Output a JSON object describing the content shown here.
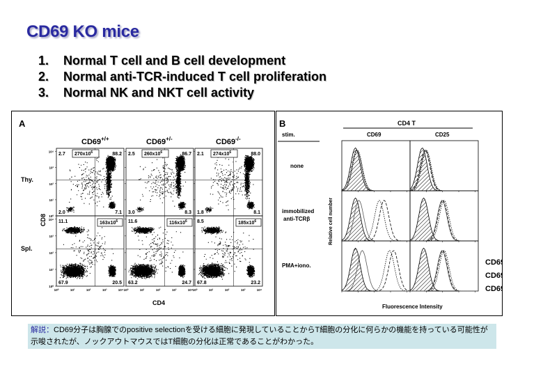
{
  "title": "CD69 KO mice",
  "points": [
    {
      "num": "1.",
      "text": "Normal T cell and B cell development"
    },
    {
      "num": "2.",
      "text": "Normal anti-TCR-induced T cell proliferation"
    },
    {
      "num": "3.",
      "text": "Normal NK and NKT cell activity"
    }
  ],
  "panel_a": {
    "letter": "A",
    "genotypes": [
      {
        "base": "CD69",
        "sup": "+/+"
      },
      {
        "base": "CD69",
        "sup": "+/-"
      },
      {
        "base": "CD69",
        "sup": "-/-"
      }
    ],
    "row_labels": [
      "Thy.",
      "Spl."
    ],
    "y_label": "CD8",
    "x_label": "CD4",
    "tick_labels": [
      "10⁰",
      "10¹",
      "10²",
      "10³",
      "10⁴"
    ],
    "thymus": [
      {
        "count_base": "270x10",
        "count_sup": "6",
        "ul": "2.7",
        "ur": "88.2",
        "ll": "2.0",
        "lr": "7.1"
      },
      {
        "count_base": "260x10",
        "count_sup": "6",
        "ul": "2.5",
        "ur": "86.7",
        "ll": "3.0",
        "lr": "8.3"
      },
      {
        "count_base": "274x10",
        "count_sup": "6",
        "ul": "2.1",
        "ur": "88.0",
        "ll": "1.8",
        "lr": "8.1"
      }
    ],
    "spleen": [
      {
        "count_base": "163x10",
        "count_sup": "6",
        "ul": "11.1",
        "ll": "67.9",
        "lr": "20.5"
      },
      {
        "count_base": "116x10",
        "count_sup": "6",
        "ul": "11.6",
        "ll": "63.2",
        "lr": "24.7"
      },
      {
        "count_base": "185x10",
        "count_sup": "6",
        "ul": "8.5",
        "ll": "67.8",
        "lr": "23.2"
      }
    ]
  },
  "panel_b": {
    "letter": "B",
    "group_header": "CD4 T",
    "stim_header": "stim.",
    "col_headers": [
      "CD69",
      "CD25"
    ],
    "stim_rows": [
      {
        "line1": "none",
        "line2": ""
      },
      {
        "line1": "immobilized",
        "line2": "anti-TCRβ"
      },
      {
        "line1": "PMA+iono.",
        "line2": ""
      }
    ],
    "y_label": "Relative cell number",
    "x_label": "Fluorescence Intensity",
    "legend": [
      {
        "base": "CD69",
        "sup": "+/+",
        "style": "dashed"
      },
      {
        "base": "CD69",
        "sup": "+/-",
        "style": "dotted"
      },
      {
        "base": "CD69",
        "sup": "-/-",
        "style": "solid"
      }
    ]
  },
  "note": {
    "label": "解説：",
    "text": "CD69分子は胸腺でのpositive selectionを受ける細胞に発現していることからT細胞の分化に何らかの機能を持っている可能性が示唆されたが、ノックアウトマウスではT細胞の分化は正常であることがわかった。"
  }
}
